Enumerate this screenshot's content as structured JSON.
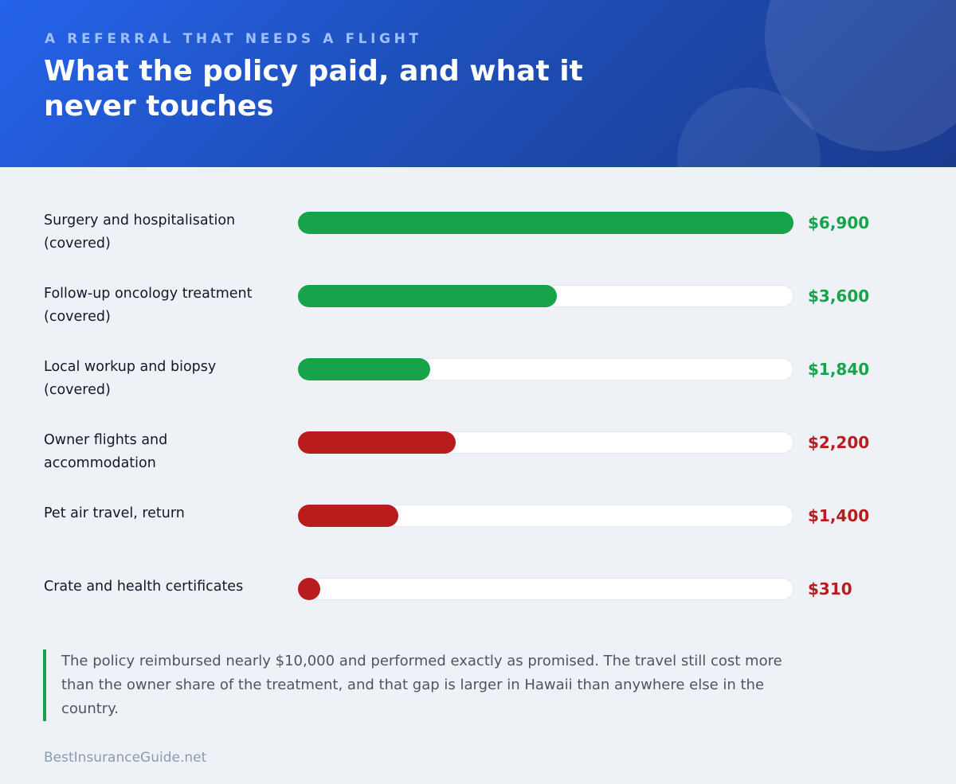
{
  "header": {
    "eyebrow": "A REFERRAL THAT NEEDS A FLIGHT",
    "title": "What the policy paid, and what it never touches"
  },
  "colors": {
    "covered": "#16a34a",
    "not_covered": "#b91c1c",
    "header_start": "#2563eb",
    "header_end": "#1a3a8f",
    "background": "#eef2f7"
  },
  "chart_data": {
    "type": "bar",
    "orientation": "horizontal",
    "title": "What the policy paid, and what it never touches",
    "xlim": [
      0,
      6900
    ],
    "grid": false,
    "categories": [
      "Surgery and hospitalisation (covered)",
      "Follow-up oncology treatment (covered)",
      "Local workup and biopsy (covered)",
      "Owner flights and accommodation",
      "Pet air travel, return",
      "Crate and health certificates"
    ],
    "values": [
      6900,
      3600,
      1840,
      2200,
      1400,
      310
    ],
    "value_labels": [
      "$6,900",
      "$3,600",
      "$1,840",
      "$2,200",
      "$1,400",
      "$310"
    ],
    "colors": [
      "#16a34a",
      "#16a34a",
      "#16a34a",
      "#b91c1c",
      "#b91c1c",
      "#b91c1c"
    ]
  },
  "note": "The policy reimbursed nearly $10,000 and performed exactly as promised. The travel still cost more than the owner share of the treatment, and that gap is larger in Hawaii than anywhere else in the country.",
  "footer": "BestInsuranceGuide.net"
}
